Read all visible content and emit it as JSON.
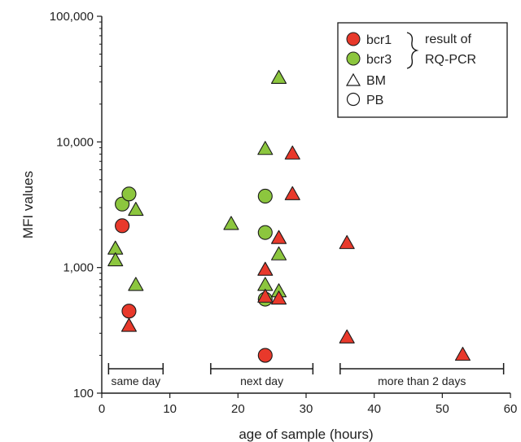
{
  "chart_data": {
    "type": "scatter",
    "title": "",
    "xlabel": "age of sample (hours)",
    "ylabel": "MFI values",
    "xlim": [
      0,
      60
    ],
    "ylim": [
      100,
      100000
    ],
    "yscale": "log",
    "grid": false,
    "legend_position": "top-right",
    "x_ticks": [
      0,
      10,
      20,
      30,
      40,
      50,
      60
    ],
    "x_tick_labels": [
      "0",
      "10",
      "20",
      "30",
      "40",
      "50",
      "60"
    ],
    "y_ticks": [
      100,
      1000,
      10000,
      100000
    ],
    "y_tick_labels": [
      "100",
      "1,000",
      "10,000",
      "100,000"
    ],
    "colors": {
      "bcr1": "#e8392b",
      "bcr3": "#8cc63e",
      "outline": "#1a1a1a"
    },
    "legend": {
      "bcr1": "bcr1",
      "bcr3": "bcr3",
      "bracket_line1": "result of",
      "bracket_line2": "RQ-PCR",
      "bm": "BM",
      "pb": "PB"
    },
    "periods": [
      {
        "label": "same day",
        "x_start": 1,
        "x_end": 9
      },
      {
        "label": "next day",
        "x_start": 16,
        "x_end": 31
      },
      {
        "label": "more than 2 days",
        "x_start": 35,
        "x_end": 59
      }
    ],
    "points": [
      {
        "x": 3,
        "y": 2150,
        "series": "bcr1",
        "sample": "PB"
      },
      {
        "x": 4,
        "y": 450,
        "series": "bcr1",
        "sample": "PB"
      },
      {
        "x": 4,
        "y": 340,
        "series": "bcr1",
        "sample": "BM"
      },
      {
        "x": 3,
        "y": 3200,
        "series": "bcr3",
        "sample": "PB"
      },
      {
        "x": 4,
        "y": 3850,
        "series": "bcr3",
        "sample": "PB"
      },
      {
        "x": 2,
        "y": 1400,
        "series": "bcr3",
        "sample": "BM"
      },
      {
        "x": 2,
        "y": 1130,
        "series": "bcr3",
        "sample": "BM"
      },
      {
        "x": 5,
        "y": 2850,
        "series": "bcr3",
        "sample": "BM"
      },
      {
        "x": 5,
        "y": 720,
        "series": "bcr3",
        "sample": "BM"
      },
      {
        "x": 19,
        "y": 2200,
        "series": "bcr3",
        "sample": "BM"
      },
      {
        "x": 24,
        "y": 3700,
        "series": "bcr3",
        "sample": "PB"
      },
      {
        "x": 24,
        "y": 1900,
        "series": "bcr3",
        "sample": "PB"
      },
      {
        "x": 24,
        "y": 560,
        "series": "bcr3",
        "sample": "PB"
      },
      {
        "x": 24,
        "y": 8700,
        "series": "bcr3",
        "sample": "BM"
      },
      {
        "x": 24,
        "y": 720,
        "series": "bcr3",
        "sample": "BM"
      },
      {
        "x": 26,
        "y": 32000,
        "series": "bcr3",
        "sample": "BM"
      },
      {
        "x": 26,
        "y": 1260,
        "series": "bcr3",
        "sample": "BM"
      },
      {
        "x": 26,
        "y": 640,
        "series": "bcr3",
        "sample": "BM"
      },
      {
        "x": 24,
        "y": 200,
        "series": "bcr1",
        "sample": "PB"
      },
      {
        "x": 24,
        "y": 950,
        "series": "bcr1",
        "sample": "BM"
      },
      {
        "x": 24,
        "y": 580,
        "series": "bcr1",
        "sample": "BM"
      },
      {
        "x": 26,
        "y": 1700,
        "series": "bcr1",
        "sample": "BM"
      },
      {
        "x": 26,
        "y": 560,
        "series": "bcr1",
        "sample": "BM"
      },
      {
        "x": 28,
        "y": 8000,
        "series": "bcr1",
        "sample": "BM"
      },
      {
        "x": 28,
        "y": 3800,
        "series": "bcr1",
        "sample": "BM"
      },
      {
        "x": 36,
        "y": 1550,
        "series": "bcr1",
        "sample": "BM"
      },
      {
        "x": 36,
        "y": 275,
        "series": "bcr1",
        "sample": "BM"
      },
      {
        "x": 53,
        "y": 200,
        "series": "bcr1",
        "sample": "BM"
      }
    ]
  }
}
